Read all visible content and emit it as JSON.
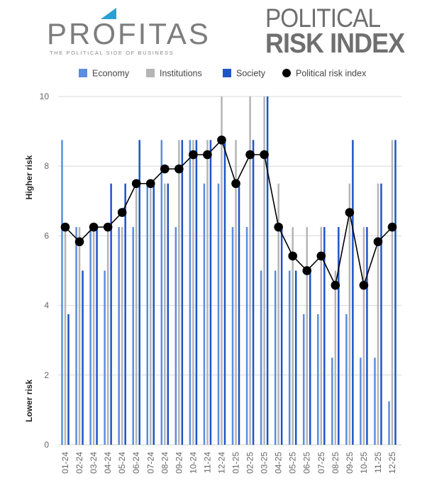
{
  "header": {
    "brand_name": "PROFITAS",
    "brand_tagline": "THE POLITICAL SIDE OF BUSINESS",
    "title_line1": "POLITICAL",
    "title_line2": "RISK INDEX"
  },
  "colors": {
    "economy": "#5b8de0",
    "institutions": "#b5b5b5",
    "society": "#1f55c7",
    "index": "#000000",
    "grid": "#d9d9d9",
    "brand_accent": "#2a9fd6"
  },
  "chart_data": {
    "type": "bar",
    "categories": [
      "01-24",
      "02-24",
      "03-24",
      "04-24",
      "05-24",
      "06-24",
      "07-24",
      "08-24",
      "09-24",
      "10-24",
      "11-24",
      "12-24",
      "01-25",
      "02-25",
      "03-25",
      "04-25",
      "05-25",
      "06-25",
      "07-25",
      "08-25",
      "09-25",
      "10-25",
      "11-25",
      "12-25"
    ],
    "series": [
      {
        "name": "Economy",
        "type": "bar",
        "values": [
          8.75,
          6.25,
          6.25,
          5.0,
          6.25,
          6.25,
          7.5,
          8.75,
          6.25,
          8.75,
          7.5,
          7.5,
          6.25,
          6.25,
          5.0,
          5.0,
          5.0,
          3.75,
          3.75,
          2.5,
          3.75,
          2.5,
          2.5,
          1.25
        ]
      },
      {
        "name": "Institutions",
        "type": "bar",
        "values": [
          6.25,
          6.25,
          6.25,
          6.25,
          6.25,
          7.5,
          7.5,
          7.5,
          8.75,
          8.75,
          8.75,
          10.0,
          8.75,
          10.0,
          10.0,
          7.5,
          6.25,
          6.25,
          6.25,
          5.0,
          7.5,
          6.25,
          7.5,
          8.75
        ]
      },
      {
        "name": "Society",
        "type": "bar",
        "values": [
          3.75,
          5.0,
          6.25,
          7.5,
          7.5,
          8.75,
          7.5,
          7.5,
          8.75,
          8.75,
          8.75,
          8.75,
          7.5,
          8.75,
          10.0,
          6.25,
          5.0,
          5.0,
          6.25,
          6.25,
          8.75,
          6.25,
          7.5,
          8.75
        ]
      },
      {
        "name": "Political risk index",
        "type": "line",
        "values": [
          6.25,
          5.83,
          6.25,
          6.25,
          6.67,
          7.5,
          7.5,
          7.92,
          7.92,
          8.33,
          8.33,
          8.75,
          7.5,
          8.33,
          8.33,
          6.25,
          5.42,
          5.0,
          5.42,
          4.58,
          6.67,
          4.58,
          5.83,
          6.25
        ]
      }
    ],
    "ylim": [
      0,
      10
    ],
    "yticks": [
      0,
      2,
      4,
      6,
      8,
      10
    ],
    "y_side_labels": {
      "low": "Lower risk",
      "high": "Higher risk"
    },
    "grid": true,
    "legend_position": "top"
  }
}
